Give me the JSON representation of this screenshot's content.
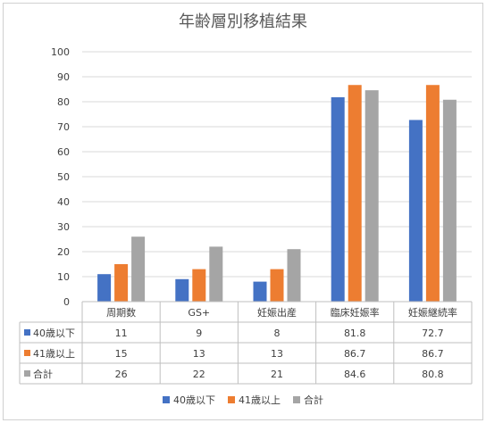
{
  "chart_data": {
    "type": "bar",
    "title": "年齢層別移植結果",
    "categories": [
      "周期数",
      "GS+",
      "妊娠出産",
      "臨床妊娠率",
      "妊娠継続率"
    ],
    "series": [
      {
        "name": "40歳以下",
        "color": "#4472C4",
        "values": [
          11,
          9,
          8,
          81.8,
          72.7
        ],
        "labels": [
          "11",
          "9",
          "8",
          "81.8",
          "72.7"
        ]
      },
      {
        "name": "41歳以上",
        "color": "#ED7D31",
        "values": [
          15,
          13,
          13,
          86.7,
          86.7
        ],
        "labels": [
          "15",
          "13",
          "13",
          "86.7",
          "86.7"
        ]
      },
      {
        "name": "合計",
        "color": "#A5A5A5",
        "values": [
          26,
          22,
          21,
          84.6,
          80.8
        ],
        "labels": [
          "26",
          "22",
          "21",
          "84.6",
          "80.8"
        ]
      }
    ],
    "ylim": [
      0,
      100
    ],
    "yticks": [
      "0",
      "10",
      "20",
      "30",
      "40",
      "50",
      "60",
      "70",
      "80",
      "90",
      "100"
    ],
    "grid": true,
    "legend_position": "bottom",
    "data_table": true
  }
}
